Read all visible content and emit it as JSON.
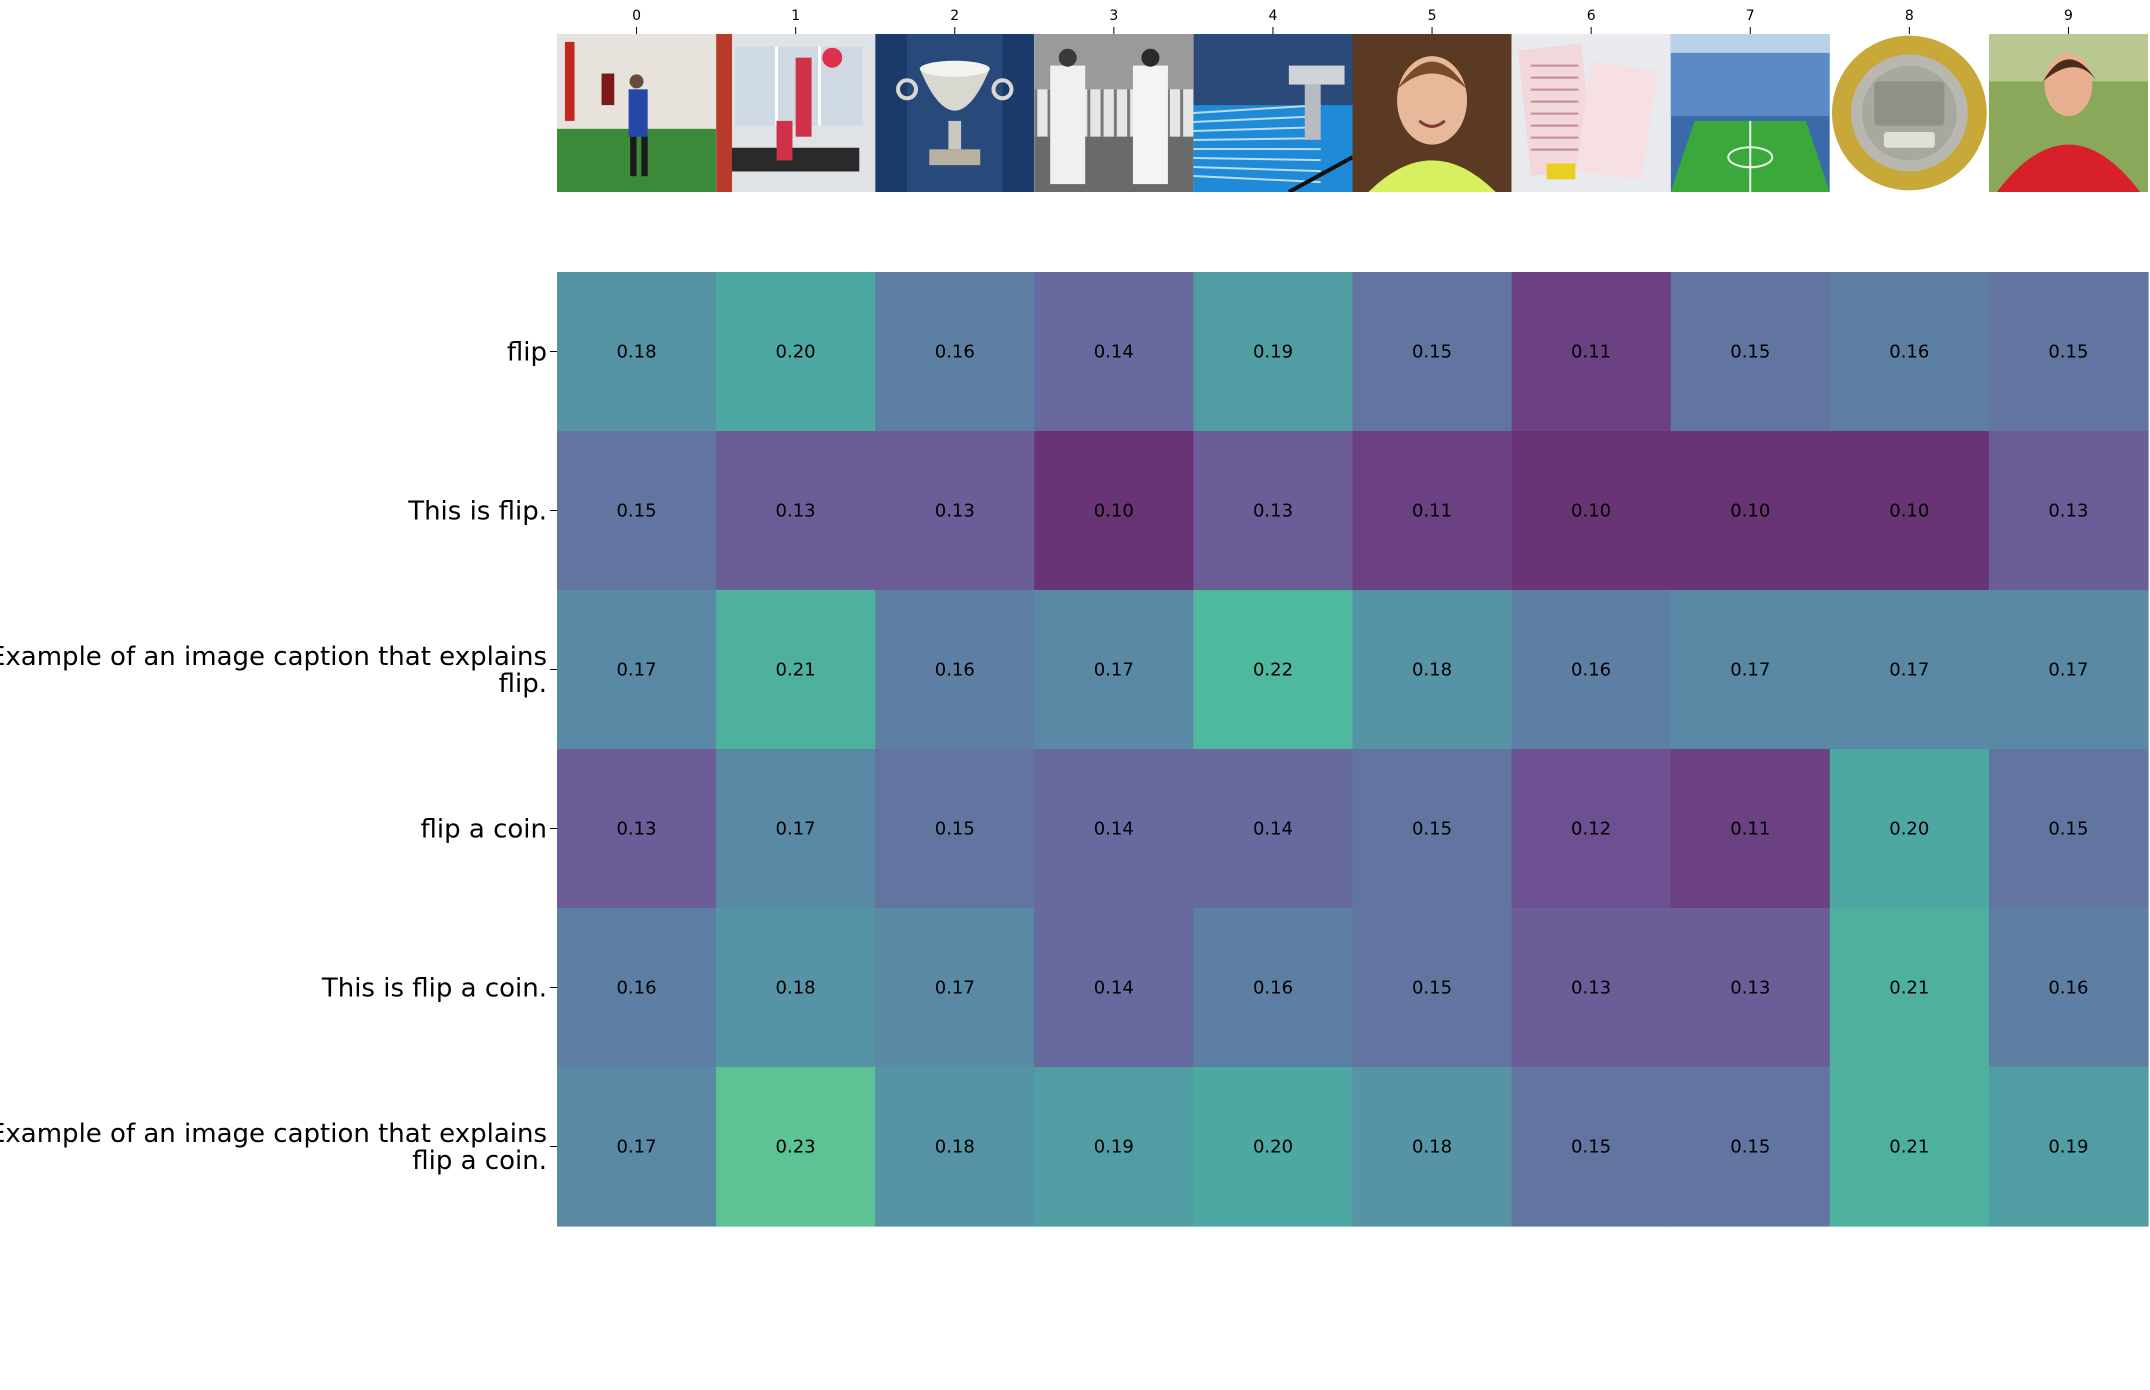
{
  "chart_data": {
    "type": "heatmap",
    "title": "",
    "xlabel": "",
    "ylabel": "",
    "columns": [
      "0",
      "1",
      "2",
      "3",
      "4",
      "5",
      "6",
      "7",
      "8",
      "9"
    ],
    "column_images": [
      "indoor-sports-practice-photo",
      "acrobatic-gymnastics-photo",
      "silver-trophy-cup-photo",
      "vintage-cricket-players-photo",
      "diving-platform-pool-photo",
      "smiling-athlete-portrait-photo",
      "lottery-tickets-photo",
      "football-stadium-photo",
      "french-20-franc-coin-photo",
      "soccer-player-red-jersey-photo"
    ],
    "rows": [
      [
        "flip"
      ],
      [
        "This is flip."
      ],
      [
        "Example of an image caption that explains",
        "flip."
      ],
      [
        "flip a coin"
      ],
      [
        "This is flip a coin."
      ],
      [
        "Example of an image caption that explains",
        "flip a coin."
      ]
    ],
    "values": [
      [
        0.18,
        0.2,
        0.16,
        0.14,
        0.19,
        0.15,
        0.11,
        0.15,
        0.16,
        0.15
      ],
      [
        0.15,
        0.13,
        0.13,
        0.1,
        0.13,
        0.11,
        0.1,
        0.1,
        0.1,
        0.13
      ],
      [
        0.17,
        0.21,
        0.16,
        0.17,
        0.22,
        0.18,
        0.16,
        0.17,
        0.17,
        0.17
      ],
      [
        0.13,
        0.17,
        0.15,
        0.14,
        0.14,
        0.15,
        0.12,
        0.11,
        0.2,
        0.15
      ],
      [
        0.16,
        0.18,
        0.17,
        0.14,
        0.16,
        0.15,
        0.13,
        0.13,
        0.21,
        0.16
      ],
      [
        0.17,
        0.23,
        0.18,
        0.19,
        0.2,
        0.18,
        0.15,
        0.15,
        0.21,
        0.19
      ]
    ],
    "value_labels": [
      [
        "0.18",
        "0.20",
        "0.16",
        "0.14",
        "0.19",
        "0.15",
        "0.11",
        "0.15",
        "0.16",
        "0.15"
      ],
      [
        "0.15",
        "0.13",
        "0.13",
        "0.10",
        "0.13",
        "0.11",
        "0.10",
        "0.10",
        "0.10",
        "0.13"
      ],
      [
        "0.17",
        "0.21",
        "0.16",
        "0.17",
        "0.22",
        "0.18",
        "0.16",
        "0.17",
        "0.17",
        "0.17"
      ],
      [
        "0.13",
        "0.17",
        "0.15",
        "0.14",
        "0.14",
        "0.15",
        "0.12",
        "0.11",
        "0.20",
        "0.15"
      ],
      [
        "0.16",
        "0.18",
        "0.17",
        "0.14",
        "0.16",
        "0.15",
        "0.13",
        "0.13",
        "0.21",
        "0.16"
      ],
      [
        "0.17",
        "0.23",
        "0.18",
        "0.19",
        "0.20",
        "0.18",
        "0.15",
        "0.15",
        "0.21",
        "0.19"
      ]
    ],
    "colormap": "viridis",
    "vmin": 0.1,
    "vmax": 0.3,
    "cell_alpha": 0.8,
    "grid": false,
    "legend": "none"
  }
}
